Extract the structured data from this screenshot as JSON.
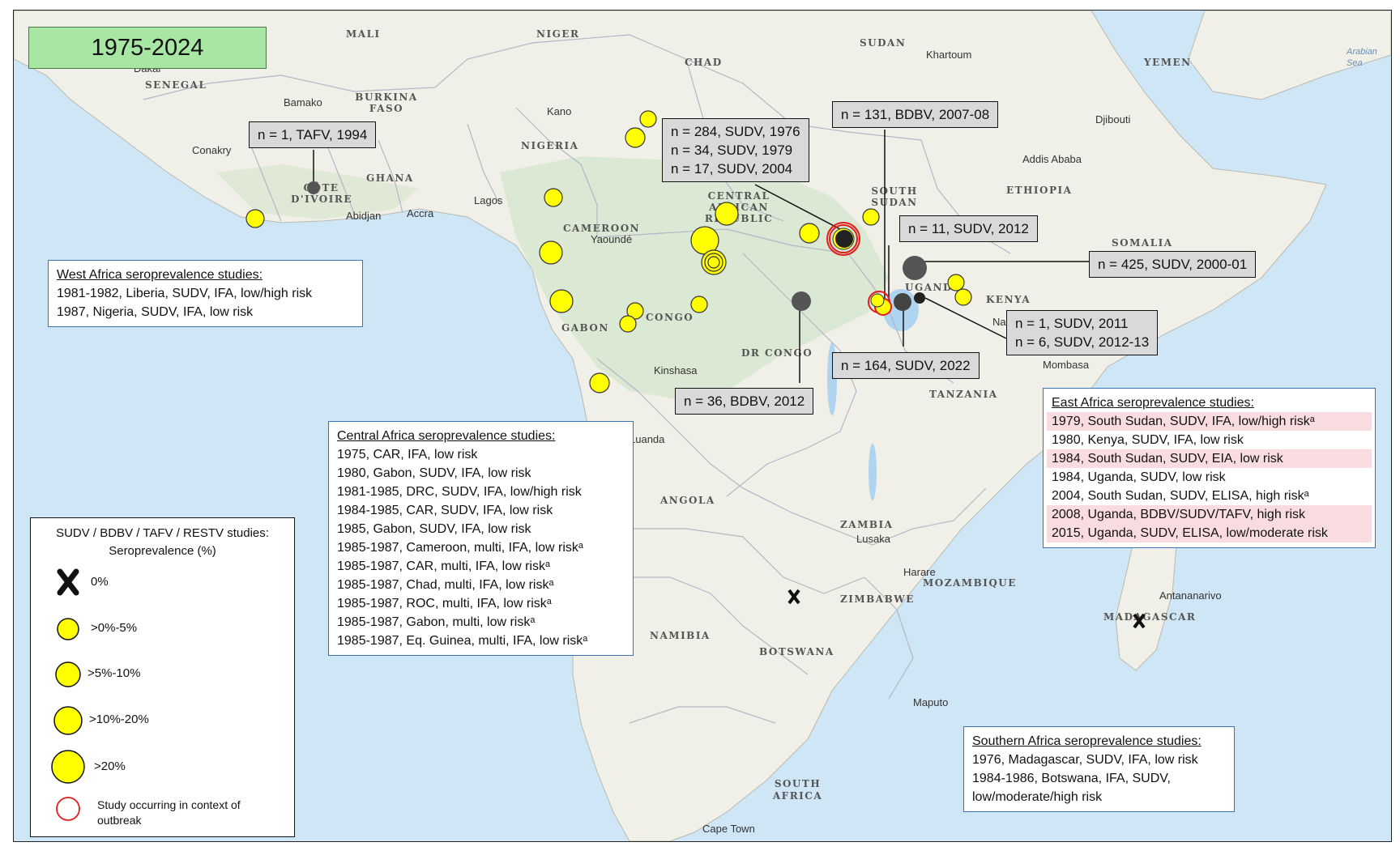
{
  "title": "1975-2024",
  "colors": {
    "ocean": "#cfe6f6",
    "land": "#f1f0e8",
    "forest": "#d7e6cf",
    "yellow": "#ffff00",
    "outbreak_ring": "#e21b1b",
    "grey_marker": "#555555"
  },
  "map_labels": {
    "countries": [
      "MALI",
      "NIGER",
      "CHAD",
      "SUDAN",
      "YEMEN",
      "SENEGAL",
      "BURKINA FASO",
      "NIGERIA",
      "GHANA",
      "CÔTE D'IVOIRE",
      "ETHIOPIA",
      "CENTRAL AFRICAN REPUBLIC",
      "SOUTH SUDAN",
      "CAMEROON",
      "SOMALIA",
      "UGANDA",
      "KENYA",
      "GABON",
      "CONGO",
      "DR CONGO",
      "TANZANIA",
      "ANGOLA",
      "ZAMBIA",
      "MOZAMBIQUE",
      "ZIMBABWE",
      "NAMIBIA",
      "BOTSWANA",
      "MADAGASCAR",
      "SOUTH AFRICA"
    ],
    "cities": [
      "Dakar",
      "Bamako",
      "Conakry",
      "Abidjan",
      "Accra",
      "Lagos",
      "Kano",
      "Yaoundé",
      "Khartoum",
      "Djibouti",
      "Addis Ababa",
      "Kinshasa",
      "Luanda",
      "Mombasa",
      "Lusaka",
      "Harare",
      "Antananarivo",
      "Maputo",
      "Cape Town",
      "Nairobi"
    ],
    "sea": [
      "Arabian Sea"
    ]
  },
  "callouts": [
    {
      "lines": [
        "n = 1, TAFV, 1994"
      ]
    },
    {
      "lines": [
        "n = 284, SUDV, 1976",
        "n = 34, SUDV, 1979",
        "n = 17, SUDV, 2004"
      ]
    },
    {
      "lines": [
        "n = 131, BDBV, 2007-08"
      ]
    },
    {
      "lines": [
        "n = 11, SUDV, 2012"
      ]
    },
    {
      "lines": [
        "n = 425, SUDV, 2000-01"
      ]
    },
    {
      "lines": [
        "n = 1, SUDV, 2011",
        "n = 6, SUDV, 2012-13"
      ]
    },
    {
      "lines": [
        "n = 164, SUDV, 2022"
      ]
    },
    {
      "lines": [
        "n = 36, BDBV, 2012"
      ]
    }
  ],
  "west_box": {
    "header": "West Africa seroprevalence  studies:",
    "rows": [
      "1981-1982, Liberia, SUDV, IFA, low/high risk",
      "1987, Nigeria, SUDV, IFA, low risk"
    ]
  },
  "central_box": {
    "header": "Central Africa seroprevalence  studies:",
    "rows": [
      "1975, CAR, IFA, low risk",
      "1980, Gabon, SUDV, IFA, low risk",
      "1981-1985, DRC, SUDV, IFA, low/high risk",
      "1984-1985, CAR, SUDV, IFA, low risk",
      "1985, Gabon, SUDV, IFA, low risk",
      "1985-1987, Cameroon, multi, IFA, low riskᵃ",
      "1985-1987, CAR, multi, IFA, low riskᵃ",
      "1985-1987, Chad, multi, IFA, low riskᵃ",
      "1985-1987, ROC, multi, IFA, low riskᵃ",
      "1985-1987, Gabon, multi, low riskᵃ",
      "1985-1987, Eq. Guinea, multi, IFA, low riskᵃ"
    ]
  },
  "east_box": {
    "header": "East Africa seroprevalence  studies:",
    "rows": [
      "1979, South Sudan, SUDV, IFA, low/high riskᵃ",
      "1980, Kenya, SUDV, IFA, low risk",
      "1984, South Sudan, SUDV, EIA, low risk",
      "1984, Uganda, SUDV, low risk",
      "2004, South Sudan, SUDV, ELISA, high riskᵃ",
      "2008, Uganda, BDBV/SUDV/TAFV, high risk",
      "2015, Uganda, SUDV, ELISA, low/moderate  risk"
    ],
    "highlighted": [
      true,
      false,
      true,
      false,
      false,
      true,
      true
    ]
  },
  "southern_box": {
    "header": "Southern Africa seroprevalence  studies:",
    "rows": [
      "1976, Madagascar, SUDV, IFA, low risk",
      "1984-1986, Botswana, IFA, SUDV,",
      "low/moderate/high risk"
    ]
  },
  "legend": {
    "title": "SUDV / BDBV / TAFV / RESTV studies:",
    "subtitle": "Seroprevalence  (%)",
    "items": [
      "0%",
      ">0%-5%",
      ">5%-10%",
      ">10%-20%",
      ">20%"
    ],
    "outbreak_label_1": "Study occurring in context of",
    "outbreak_label_2": "outbreak"
  }
}
